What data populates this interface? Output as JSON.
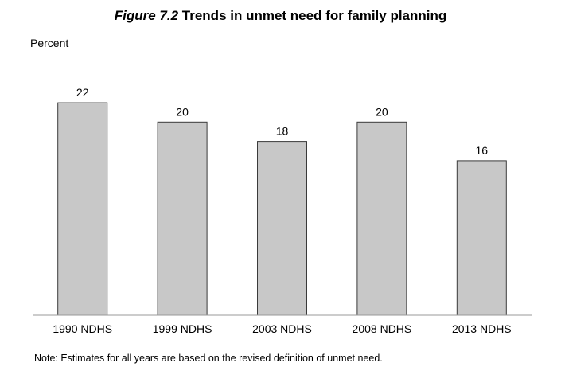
{
  "chart_data": {
    "type": "bar",
    "title_prefix": "Figure 7.2",
    "title_text": "Trends in unmet need for family planning",
    "ylabel": "Percent",
    "xlabel": "",
    "categories": [
      "1990 NDHS",
      "1999 NDHS",
      "2003 NDHS",
      "2008 NDHS",
      "2013 NDHS"
    ],
    "values": [
      22,
      20,
      18,
      20,
      16
    ],
    "ylim": [
      0,
      22.5
    ],
    "grid": false,
    "legend": "none",
    "bar_color": "#c8c8c8",
    "bar_edge_color": "#3a3a3a",
    "note": "Note: Estimates for all years are based on the revised definition of unmet need."
  }
}
